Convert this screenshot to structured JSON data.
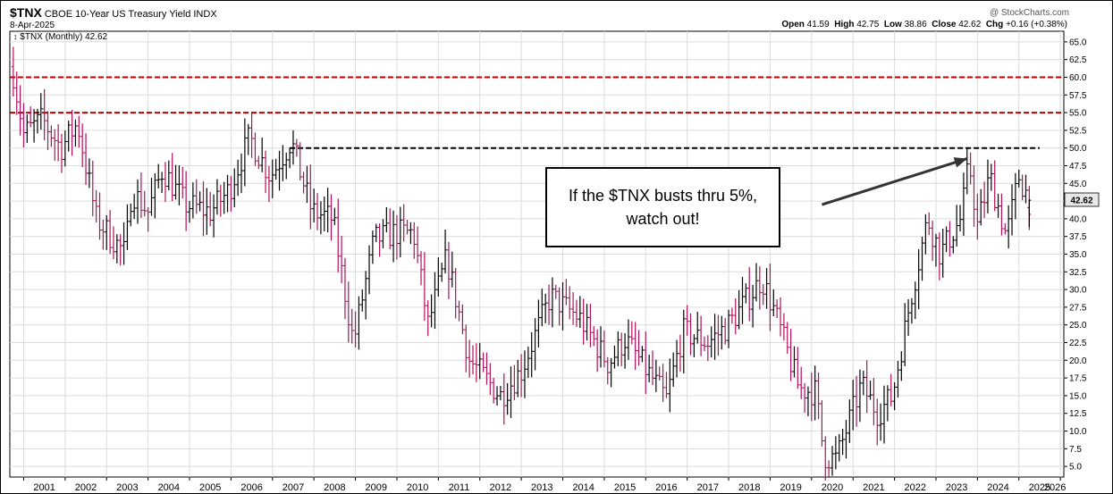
{
  "header": {
    "symbol": "$TNX",
    "name": "CBOE 10-Year US Treasury Yield",
    "exchange": "INDX",
    "date": "8-Apr-2025",
    "watermark": "@ StockCharts.com",
    "ohlc": {
      "open_label": "Open",
      "open": "41.59",
      "high_label": "High",
      "high": "42.75",
      "low_label": "Low",
      "low": "38.86",
      "close_label": "Close",
      "close": "42.62",
      "chg_label": "Chg",
      "chg": "+0.16 (+0.38%)"
    },
    "legend": "$TNX (Monthly) 42.62",
    "last_badge": "42.62"
  },
  "annotation": {
    "line1": "If the $TNX busts thru 5%,",
    "line2": "watch out!"
  },
  "colors": {
    "up_bar": "#000000",
    "down_bar": "#b0105a",
    "resistance_red": "#c00000",
    "breakout_line": "#000000",
    "grid": "#dcdcdc"
  },
  "chart_data": {
    "type": "ohlc",
    "interval": "monthly",
    "symbol": "$TNX",
    "title": "CBOE 10-Year US Treasury Yield",
    "y_scale": "linear",
    "ylim": [
      3.5,
      66.5
    ],
    "xlim": [
      "2000-09",
      "2026-02"
    ],
    "grid": true,
    "y_ticks": [
      "65.0",
      "62.5",
      "60.0",
      "57.5",
      "55.0",
      "52.5",
      "50.0",
      "47.5",
      "45.0",
      "42.5",
      "40.0",
      "37.5",
      "35.0",
      "32.5",
      "30.0",
      "27.5",
      "25.0",
      "22.5",
      "20.0",
      "17.5",
      "15.0",
      "12.5",
      "10.0",
      "7.5",
      "5.0"
    ],
    "x_ticks": [
      "2001",
      "2002",
      "2003",
      "2004",
      "2005",
      "2006",
      "2007",
      "2008",
      "2009",
      "2010",
      "2011",
      "2012",
      "2013",
      "2014",
      "2015",
      "2016",
      "2017",
      "2018",
      "2019",
      "2020",
      "2021",
      "2022",
      "2023",
      "2024",
      "2025",
      "2026"
    ],
    "hlines": [
      {
        "y": 60.0,
        "style": "dashed",
        "color": "#c00000",
        "from": "2000-09",
        "to": "2026-02"
      },
      {
        "y": 55.0,
        "style": "dashed",
        "color": "#c00000",
        "from": "2000-09",
        "to": "2026-02"
      },
      {
        "y": 50.0,
        "style": "dashed",
        "color": "#000000",
        "from": "2007-06",
        "to": "2025-07"
      }
    ],
    "arrow": {
      "from": [
        "2020-04",
        42.0
      ],
      "to": [
        "2023-10",
        48.5
      ]
    },
    "last": {
      "open": 41.59,
      "high": 42.75,
      "low": 38.86,
      "close": 42.62,
      "change": 0.16,
      "change_pct": 0.38
    },
    "yearly_path": [
      [
        2000.75,
        60.5
      ],
      [
        2001.0,
        52.0
      ],
      [
        2001.45,
        54.0
      ],
      [
        2001.9,
        50.0
      ],
      [
        2002.3,
        53.5
      ],
      [
        2002.75,
        40.0
      ],
      [
        2003.45,
        35.0
      ],
      [
        2003.6,
        44.0
      ],
      [
        2004.0,
        41.0
      ],
      [
        2004.35,
        47.0
      ],
      [
        2004.9,
        42.0
      ],
      [
        2005.5,
        41.0
      ],
      [
        2005.95,
        44.0
      ],
      [
        2006.45,
        51.5
      ],
      [
        2006.95,
        46.0
      ],
      [
        2007.45,
        51.0
      ],
      [
        2007.95,
        41.0
      ],
      [
        2008.45,
        40.0
      ],
      [
        2008.95,
        22.5
      ],
      [
        2009.45,
        37.0
      ],
      [
        2009.95,
        38.0
      ],
      [
        2010.4,
        38.0
      ],
      [
        2010.75,
        25.0
      ],
      [
        2011.2,
        34.5
      ],
      [
        2011.75,
        20.0
      ],
      [
        2012.5,
        15.0
      ],
      [
        2013.0,
        18.5
      ],
      [
        2013.7,
        29.0
      ],
      [
        2014.4,
        26.0
      ],
      [
        2015.1,
        19.5
      ],
      [
        2015.5,
        23.0
      ],
      [
        2016.5,
        14.5
      ],
      [
        2016.9,
        24.0
      ],
      [
        2017.5,
        22.5
      ],
      [
        2018.0,
        25.0
      ],
      [
        2018.8,
        31.5
      ],
      [
        2019.1,
        27.0
      ],
      [
        2019.7,
        16.0
      ],
      [
        2020.1,
        15.5
      ],
      [
        2020.3,
        6.5
      ],
      [
        2020.6,
        6.0
      ],
      [
        2021.2,
        16.5
      ],
      [
        2021.6,
        12.5
      ],
      [
        2021.95,
        15.0
      ],
      [
        2022.4,
        29.0
      ],
      [
        2022.8,
        40.0
      ],
      [
        2023.1,
        35.0
      ],
      [
        2023.6,
        40.0
      ],
      [
        2023.8,
        48.0
      ],
      [
        2024.0,
        39.0
      ],
      [
        2024.3,
        46.0
      ],
      [
        2024.7,
        37.5
      ],
      [
        2025.0,
        46.0
      ],
      [
        2025.25,
        42.6
      ]
    ]
  }
}
